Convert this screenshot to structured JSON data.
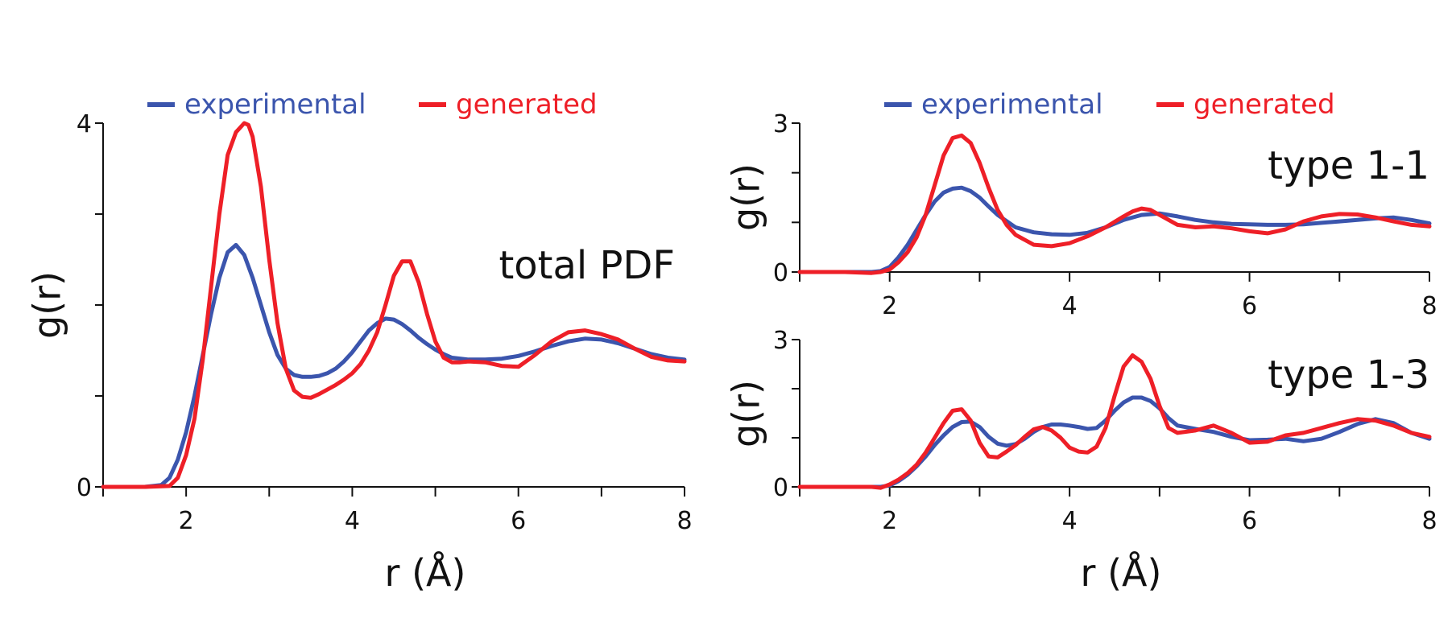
{
  "colors": {
    "experimental": "#3b55ad",
    "generated": "#ee1f27",
    "axis": "#111111"
  },
  "chart_data": [
    {
      "type": "line",
      "panel": "total",
      "label": "total PDF",
      "xlabel": "r (Å)",
      "ylabel": "g(r)",
      "xlim": [
        1,
        8
      ],
      "ylim": [
        0,
        4
      ],
      "xticks": [
        2,
        4,
        6,
        8
      ],
      "yticks": [
        0,
        4
      ],
      "grid": false,
      "legend": "top",
      "series": [
        {
          "name": "experimental",
          "color": "#3b55ad",
          "x": [
            1,
            1.5,
            1.7,
            1.8,
            1.9,
            2.0,
            2.1,
            2.2,
            2.3,
            2.4,
            2.5,
            2.6,
            2.7,
            2.8,
            2.9,
            3.0,
            3.1,
            3.2,
            3.3,
            3.4,
            3.5,
            3.6,
            3.7,
            3.8,
            3.9,
            4.0,
            4.1,
            4.2,
            4.3,
            4.4,
            4.5,
            4.6,
            4.7,
            4.8,
            4.9,
            5.0,
            5.1,
            5.2,
            5.4,
            5.6,
            5.8,
            6.0,
            6.2,
            6.4,
            6.6,
            6.8,
            7.0,
            7.2,
            7.4,
            7.6,
            7.8,
            8.0
          ],
          "y": [
            0,
            0,
            0.02,
            0.1,
            0.3,
            0.6,
            1.0,
            1.45,
            1.9,
            2.3,
            2.58,
            2.66,
            2.55,
            2.3,
            2.0,
            1.7,
            1.45,
            1.3,
            1.23,
            1.21,
            1.21,
            1.22,
            1.25,
            1.3,
            1.38,
            1.48,
            1.6,
            1.72,
            1.8,
            1.85,
            1.84,
            1.79,
            1.72,
            1.64,
            1.57,
            1.51,
            1.46,
            1.42,
            1.4,
            1.4,
            1.41,
            1.44,
            1.49,
            1.55,
            1.6,
            1.63,
            1.62,
            1.58,
            1.52,
            1.46,
            1.42,
            1.4
          ]
        },
        {
          "name": "generated",
          "color": "#ee1f27",
          "x": [
            1,
            1.5,
            1.8,
            1.9,
            2.0,
            2.1,
            2.2,
            2.3,
            2.4,
            2.5,
            2.6,
            2.7,
            2.75,
            2.8,
            2.9,
            3.0,
            3.1,
            3.2,
            3.3,
            3.4,
            3.5,
            3.6,
            3.7,
            3.8,
            3.9,
            4.0,
            4.1,
            4.2,
            4.3,
            4.4,
            4.5,
            4.6,
            4.7,
            4.8,
            4.9,
            5.0,
            5.1,
            5.2,
            5.3,
            5.4,
            5.6,
            5.8,
            6.0,
            6.2,
            6.4,
            6.6,
            6.8,
            7.0,
            7.2,
            7.4,
            7.6,
            7.8,
            8.0
          ],
          "y": [
            0,
            0,
            0.01,
            0.1,
            0.35,
            0.75,
            1.4,
            2.2,
            3.0,
            3.65,
            3.9,
            4.0,
            3.98,
            3.85,
            3.3,
            2.5,
            1.8,
            1.3,
            1.06,
            0.99,
            0.98,
            1.02,
            1.07,
            1.12,
            1.18,
            1.25,
            1.35,
            1.5,
            1.7,
            2.0,
            2.32,
            2.48,
            2.48,
            2.25,
            1.9,
            1.6,
            1.42,
            1.37,
            1.37,
            1.38,
            1.37,
            1.33,
            1.32,
            1.45,
            1.6,
            1.7,
            1.72,
            1.68,
            1.62,
            1.52,
            1.43,
            1.39,
            1.38
          ]
        }
      ]
    },
    {
      "type": "line",
      "panel": "type11",
      "label": "type 1-1",
      "xlabel": "",
      "ylabel": "g(r)",
      "xlim": [
        1,
        8
      ],
      "ylim": [
        0,
        3
      ],
      "xticks": [
        2,
        4,
        6,
        8
      ],
      "yticks": [
        0,
        3
      ],
      "grid": false,
      "legend": "top",
      "series": [
        {
          "name": "experimental",
          "color": "#3b55ad",
          "x": [
            1,
            1.8,
            1.9,
            2.0,
            2.1,
            2.2,
            2.3,
            2.4,
            2.5,
            2.6,
            2.7,
            2.8,
            2.9,
            3.0,
            3.1,
            3.2,
            3.4,
            3.6,
            3.8,
            4.0,
            4.2,
            4.4,
            4.6,
            4.8,
            5.0,
            5.2,
            5.4,
            5.6,
            5.8,
            6.0,
            6.2,
            6.4,
            6.6,
            6.8,
            7.0,
            7.2,
            7.4,
            7.6,
            7.8,
            8.0
          ],
          "y": [
            0,
            0,
            0.02,
            0.1,
            0.3,
            0.55,
            0.85,
            1.15,
            1.42,
            1.6,
            1.68,
            1.7,
            1.63,
            1.5,
            1.32,
            1.15,
            0.9,
            0.8,
            0.76,
            0.75,
            0.79,
            0.9,
            1.05,
            1.15,
            1.18,
            1.12,
            1.05,
            1.0,
            0.97,
            0.96,
            0.95,
            0.95,
            0.96,
            0.99,
            1.02,
            1.05,
            1.08,
            1.1,
            1.05,
            0.98
          ]
        },
        {
          "name": "generated",
          "color": "#ee1f27",
          "x": [
            1,
            1.5,
            1.8,
            1.9,
            2.0,
            2.1,
            2.2,
            2.3,
            2.4,
            2.5,
            2.6,
            2.7,
            2.8,
            2.9,
            3.0,
            3.1,
            3.2,
            3.3,
            3.4,
            3.6,
            3.8,
            4.0,
            4.2,
            4.4,
            4.6,
            4.7,
            4.8,
            4.9,
            5.0,
            5.2,
            5.4,
            5.6,
            5.8,
            6.0,
            6.2,
            6.4,
            6.6,
            6.8,
            7.0,
            7.2,
            7.4,
            7.6,
            7.8,
            8.0
          ],
          "y": [
            0,
            0,
            -0.02,
            0.0,
            0.05,
            0.2,
            0.4,
            0.7,
            1.15,
            1.75,
            2.35,
            2.7,
            2.75,
            2.6,
            2.2,
            1.7,
            1.25,
            0.95,
            0.75,
            0.55,
            0.52,
            0.58,
            0.72,
            0.9,
            1.12,
            1.22,
            1.28,
            1.25,
            1.15,
            0.95,
            0.9,
            0.92,
            0.88,
            0.82,
            0.78,
            0.86,
            1.02,
            1.12,
            1.17,
            1.16,
            1.1,
            1.02,
            0.95,
            0.92
          ]
        }
      ]
    },
    {
      "type": "line",
      "panel": "type13",
      "label": "type 1-3",
      "xlabel": "r (Å)",
      "ylabel": "g(r)",
      "xlim": [
        1,
        8
      ],
      "ylim": [
        0,
        3
      ],
      "xticks": [
        2,
        4,
        6,
        8
      ],
      "yticks": [
        0,
        3
      ],
      "grid": false,
      "legend": "none",
      "series": [
        {
          "name": "experimental",
          "color": "#3b55ad",
          "x": [
            1,
            1.9,
            2.0,
            2.1,
            2.2,
            2.3,
            2.4,
            2.5,
            2.6,
            2.7,
            2.8,
            2.9,
            3.0,
            3.1,
            3.2,
            3.3,
            3.4,
            3.5,
            3.6,
            3.7,
            3.8,
            3.9,
            4.0,
            4.1,
            4.2,
            4.3,
            4.4,
            4.5,
            4.6,
            4.7,
            4.8,
            4.9,
            5.0,
            5.1,
            5.2,
            5.4,
            5.6,
            5.8,
            6.0,
            6.2,
            6.4,
            6.6,
            6.8,
            7.0,
            7.2,
            7.4,
            7.6,
            7.8,
            8.0
          ],
          "y": [
            0,
            0,
            0.03,
            0.12,
            0.25,
            0.42,
            0.62,
            0.85,
            1.05,
            1.22,
            1.32,
            1.33,
            1.22,
            1.02,
            0.88,
            0.84,
            0.87,
            0.98,
            1.12,
            1.22,
            1.27,
            1.27,
            1.25,
            1.22,
            1.18,
            1.2,
            1.35,
            1.55,
            1.72,
            1.82,
            1.82,
            1.75,
            1.6,
            1.4,
            1.25,
            1.18,
            1.12,
            1.02,
            0.95,
            0.96,
            0.98,
            0.93,
            0.98,
            1.12,
            1.28,
            1.38,
            1.3,
            1.1,
            0.98
          ]
        },
        {
          "name": "generated",
          "color": "#ee1f27",
          "x": [
            1,
            1.8,
            1.9,
            2.0,
            2.1,
            2.2,
            2.3,
            2.4,
            2.5,
            2.6,
            2.7,
            2.8,
            2.9,
            3.0,
            3.1,
            3.2,
            3.3,
            3.4,
            3.5,
            3.6,
            3.7,
            3.8,
            3.9,
            4.0,
            4.1,
            4.2,
            4.3,
            4.4,
            4.5,
            4.6,
            4.7,
            4.8,
            4.9,
            5.0,
            5.1,
            5.2,
            5.4,
            5.6,
            5.8,
            6.0,
            6.2,
            6.4,
            6.6,
            6.8,
            7.0,
            7.2,
            7.4,
            7.6,
            7.8,
            8.0
          ],
          "y": [
            0,
            0,
            -0.02,
            0.05,
            0.15,
            0.28,
            0.45,
            0.7,
            1.0,
            1.3,
            1.55,
            1.58,
            1.35,
            0.9,
            0.62,
            0.6,
            0.72,
            0.85,
            1.02,
            1.17,
            1.22,
            1.15,
            1.0,
            0.8,
            0.72,
            0.7,
            0.82,
            1.2,
            1.85,
            2.45,
            2.68,
            2.55,
            2.2,
            1.65,
            1.2,
            1.1,
            1.15,
            1.25,
            1.1,
            0.9,
            0.92,
            1.05,
            1.1,
            1.2,
            1.3,
            1.38,
            1.35,
            1.25,
            1.1,
            1.02
          ]
        }
      ]
    }
  ]
}
